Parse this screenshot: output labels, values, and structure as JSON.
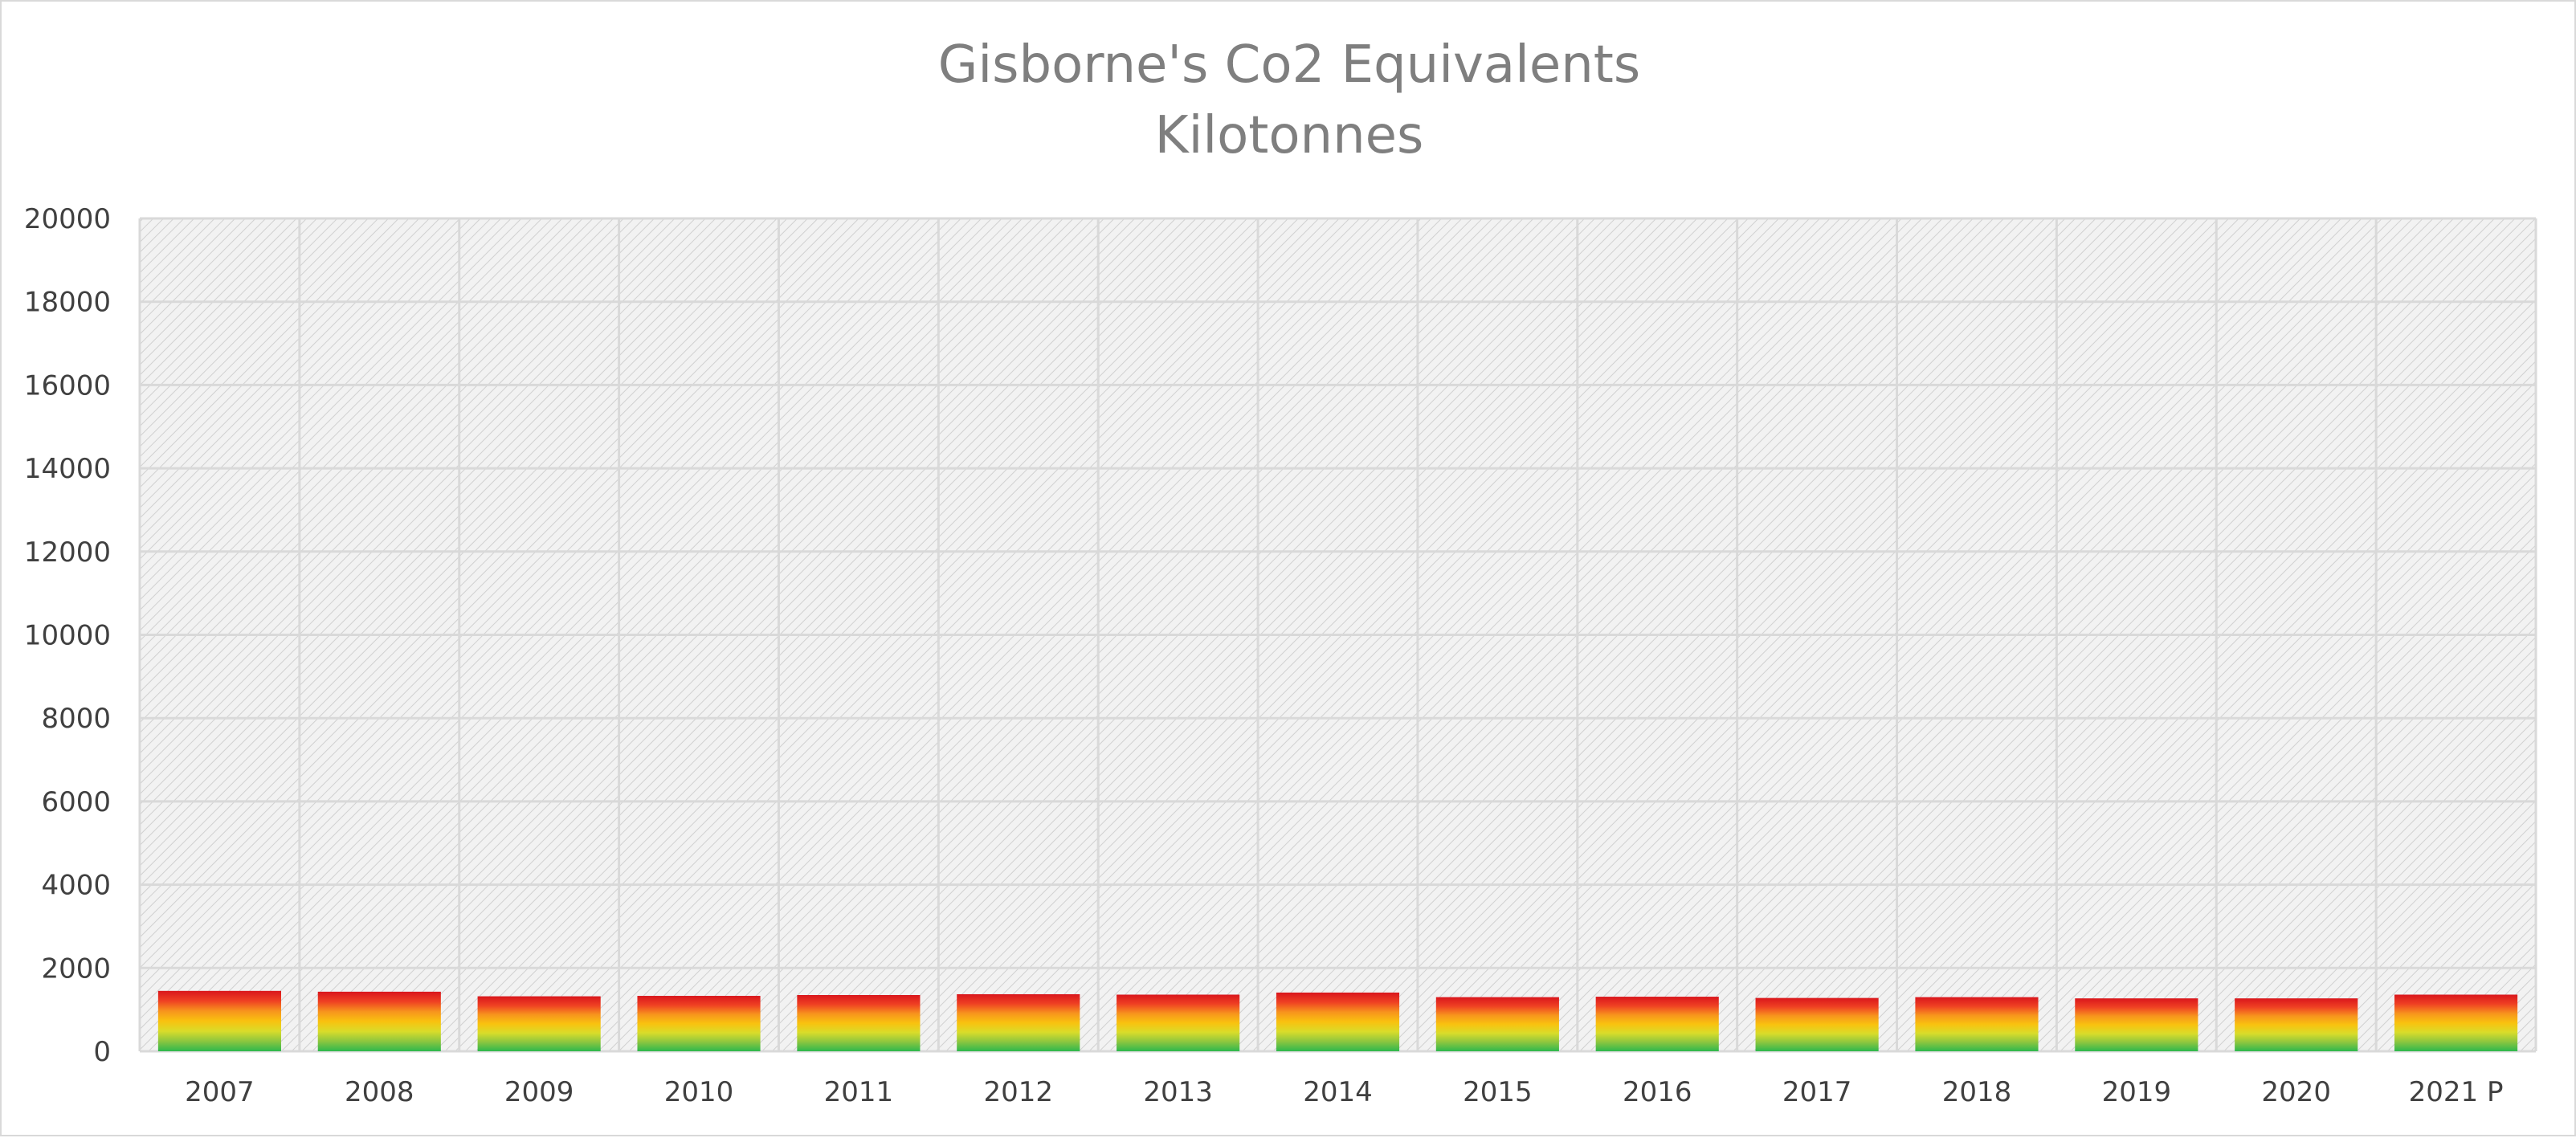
{
  "chart_data": {
    "type": "bar",
    "stacked": true,
    "title": "Gisborne's Co2 Equivalents",
    "subtitle": "Kilotonnes",
    "xlabel": "",
    "ylabel": "",
    "ylim": [
      0,
      20000
    ],
    "yticks": [
      0,
      2000,
      4000,
      6000,
      8000,
      10000,
      12000,
      14000,
      16000,
      18000,
      20000
    ],
    "grid": true,
    "legend": "none",
    "categories": [
      "2007",
      "2008",
      "2009",
      "2010",
      "2011",
      "2012",
      "2013",
      "2014",
      "2015",
      "2016",
      "2017",
      "2018",
      "2019",
      "2020",
      "2021 P"
    ],
    "totals": [
      1450,
      1430,
      1320,
      1330,
      1350,
      1370,
      1360,
      1410,
      1300,
      1310,
      1280,
      1300,
      1270,
      1270,
      1360
    ],
    "colors": {
      "plot_background": "#f2f2f2",
      "hatch": "#d0d0d0",
      "grid": "#d9d9d9",
      "bar_gradient": [
        "#2db84d",
        "#8cc63f",
        "#d9dc2a",
        "#f9c20f",
        "#f7941d",
        "#ef4123",
        "#d9161c"
      ]
    }
  }
}
